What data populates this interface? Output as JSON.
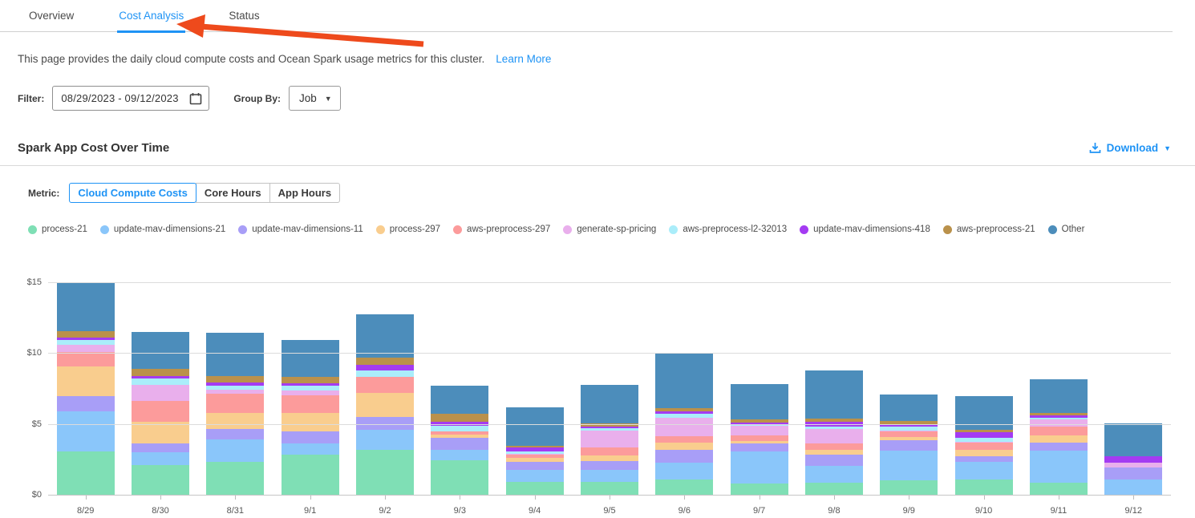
{
  "tabs": [
    {
      "label": "Overview",
      "active": false
    },
    {
      "label": "Cost Analysis",
      "active": true
    },
    {
      "label": "Status",
      "active": false
    }
  ],
  "description": {
    "text": "This page provides the daily cloud compute costs and Ocean Spark usage metrics for this cluster.",
    "link_label": "Learn More"
  },
  "filter": {
    "label": "Filter:",
    "date_range": "08/29/2023  -  09/12/2023",
    "group_by_label": "Group By:",
    "group_by_value": "Job"
  },
  "section": {
    "title": "Spark App Cost Over Time",
    "download_label": "Download"
  },
  "metric": {
    "label": "Metric:",
    "options": [
      "Cloud Compute Costs",
      "Core Hours",
      "App Hours"
    ],
    "selected": "Cloud Compute Costs"
  },
  "colors": {
    "accent_blue": "#1E93F5",
    "arrow_red": "#EE4A1C",
    "gridline": "#dcdcdc"
  },
  "chart_data": {
    "type": "bar",
    "stacked": true,
    "title": "Spark App Cost Over Time",
    "xlabel": "",
    "ylabel": "Cloud Compute Costs ($)",
    "ylim": [
      0,
      16.4
    ],
    "ytick_values": [
      0,
      5,
      10,
      15
    ],
    "ytick_labels": [
      "$0",
      "$5",
      "$10",
      "$15"
    ],
    "grid": true,
    "legend_position": "top",
    "categories": [
      "8/29",
      "8/30",
      "8/31",
      "9/1",
      "9/2",
      "9/3",
      "9/4",
      "9/5",
      "9/6",
      "9/7",
      "9/8",
      "9/9",
      "9/10",
      "9/11",
      "9/12"
    ],
    "series": [
      {
        "name": "process-21",
        "color": "#7FDFB5",
        "values": [
          3.1,
          2.15,
          2.35,
          2.9,
          3.2,
          2.5,
          0.95,
          0.95,
          1.15,
          0.85,
          0.9,
          1.1,
          1.15,
          0.9,
          0.0
        ]
      },
      {
        "name": "update-mav-dimensions-21",
        "color": "#8AC6FA",
        "values": [
          2.85,
          0.9,
          1.6,
          0.75,
          1.45,
          0.7,
          0.85,
          0.85,
          1.15,
          2.25,
          1.2,
          2.05,
          1.2,
          2.25,
          1.15
        ]
      },
      {
        "name": "update-mav-dimensions-11",
        "color": "#A89EF7",
        "values": [
          1.05,
          0.6,
          0.75,
          0.9,
          0.9,
          0.85,
          0.6,
          0.62,
          0.95,
          0.55,
          0.8,
          0.75,
          0.4,
          0.6,
          0.85
        ]
      },
      {
        "name": "process-297",
        "color": "#F9CD8E",
        "values": [
          2.1,
          1.55,
          1.1,
          1.25,
          1.7,
          0.25,
          0.27,
          0.42,
          0.5,
          0.2,
          0.3,
          0.25,
          0.45,
          0.5,
          0.0
        ]
      },
      {
        "name": "aws-preprocess-297",
        "color": "#FC9B9B",
        "values": [
          1.0,
          1.45,
          1.4,
          1.3,
          1.15,
          0.2,
          0.24,
          0.53,
          0.45,
          0.4,
          0.45,
          0.4,
          0.55,
          0.6,
          0.0
        ]
      },
      {
        "name": "generate-sp-pricing",
        "color": "#E9AFEC",
        "values": [
          0.55,
          1.15,
          0.25,
          0.3,
          0.0,
          0.05,
          0.05,
          1.2,
          1.3,
          0.65,
          1.05,
          0.05,
          0.05,
          0.5,
          0.3
        ]
      },
      {
        "name": "aws-preprocess-l2-32013",
        "color": "#AAEDFA",
        "values": [
          0.3,
          0.45,
          0.3,
          0.35,
          0.45,
          0.4,
          0.15,
          0.2,
          0.25,
          0.15,
          0.15,
          0.25,
          0.25,
          0.12,
          0.0
        ]
      },
      {
        "name": "update-mav-dimensions-418",
        "color": "#A43BF2",
        "values": [
          0.17,
          0.2,
          0.25,
          0.15,
          0.4,
          0.25,
          0.3,
          0.1,
          0.2,
          0.1,
          0.35,
          0.15,
          0.4,
          0.18,
          0.5
        ]
      },
      {
        "name": "aws-preprocess-21",
        "color": "#BA914B",
        "values": [
          0.45,
          0.5,
          0.45,
          0.45,
          0.47,
          0.55,
          0.12,
          0.2,
          0.2,
          0.2,
          0.25,
          0.25,
          0.2,
          0.2,
          0.0
        ]
      },
      {
        "name": "Other",
        "color": "#4C8DBB",
        "values": [
          3.48,
          2.6,
          3.05,
          2.6,
          3.08,
          2.0,
          2.67,
          2.73,
          3.85,
          2.5,
          3.35,
          1.9,
          2.35,
          2.35,
          2.3
        ]
      }
    ]
  }
}
